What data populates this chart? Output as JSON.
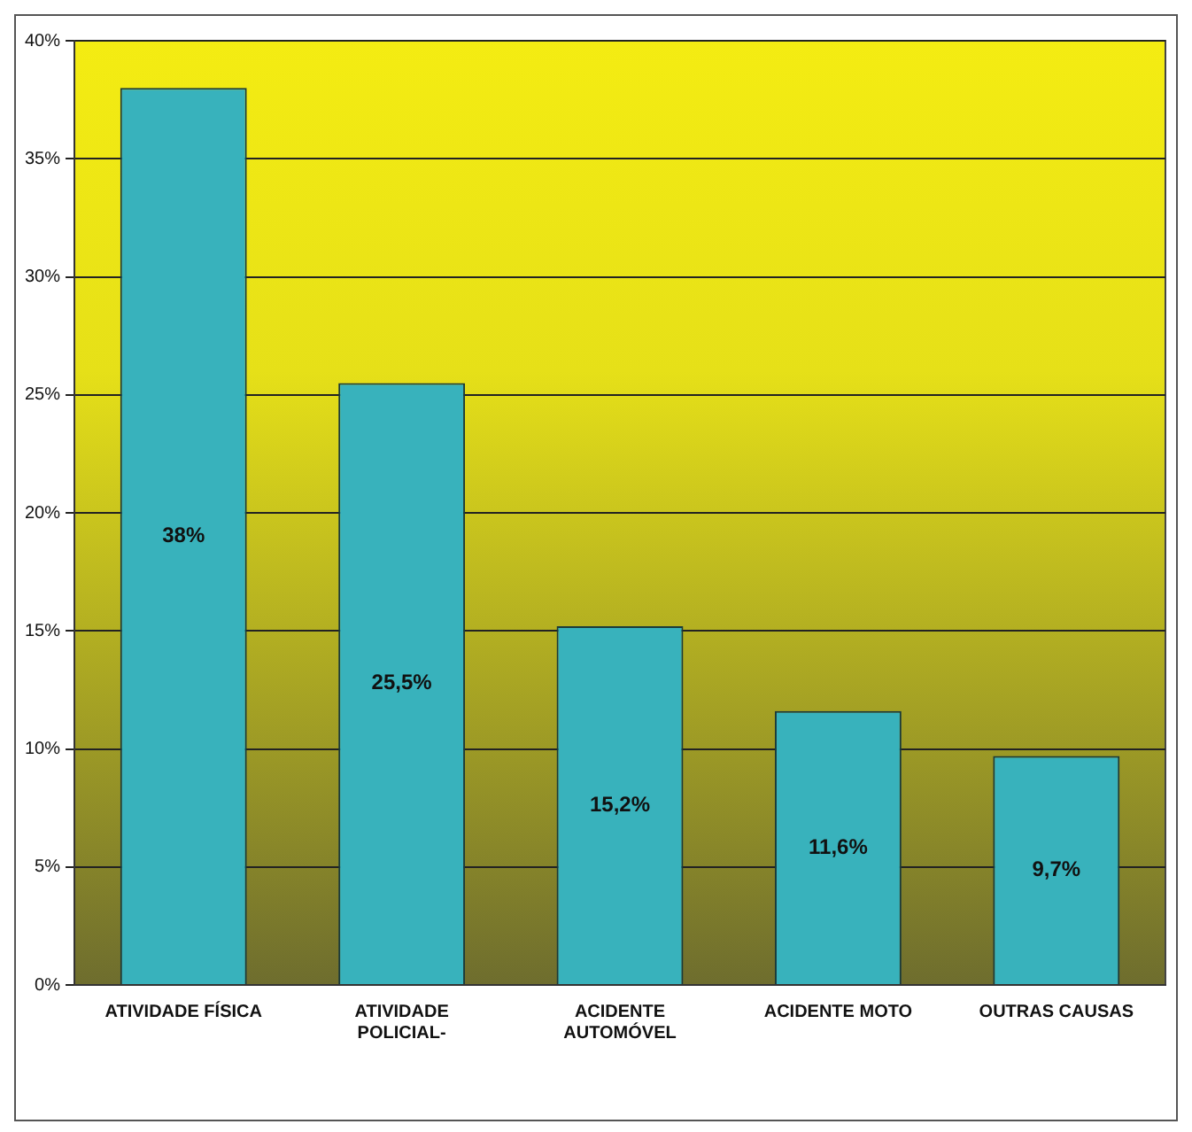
{
  "chart_data": {
    "type": "bar",
    "categories": [
      "ATIVIDADE FÍSICA",
      "ATIVIDADE POLICIAL-",
      "ACIDENTE AUTOMÓVEL",
      "ACIDENTE MOTO",
      "OUTRAS CAUSAS"
    ],
    "values": [
      38,
      25.5,
      15.2,
      11.6,
      9.7
    ],
    "value_labels": [
      "38%",
      "25,5%",
      "15,2%",
      "11,6%",
      "9,7%"
    ],
    "color": "#38b2bc",
    "ylim": [
      0,
      40
    ],
    "yticks": [
      {
        "value": 0,
        "label": "0%"
      },
      {
        "value": 5,
        "label": "5%"
      },
      {
        "value": 10,
        "label": "10%"
      },
      {
        "value": 15,
        "label": "15%"
      },
      {
        "value": 20,
        "label": "20%"
      },
      {
        "value": 25,
        "label": "25%"
      },
      {
        "value": 30,
        "label": "30%"
      },
      {
        "value": 35,
        "label": "35%"
      },
      {
        "value": 40,
        "label": "40%"
      }
    ],
    "grid": "y",
    "legend": false
  }
}
